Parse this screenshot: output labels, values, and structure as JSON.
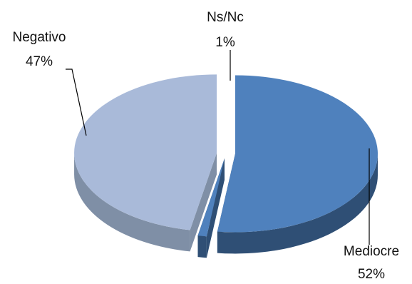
{
  "chart_data": {
    "type": "pie",
    "style": "3d-exploded",
    "slices": [
      {
        "name": "Mediocre",
        "value": 52,
        "label": "52%",
        "color": "#4F81BD",
        "side_color": "#2F4F75"
      },
      {
        "name": "Ns/Nc",
        "value": 1,
        "label": "1%",
        "color": "#4F81BD",
        "side_color": "#2F4F75"
      },
      {
        "name": "Negativo",
        "value": 47,
        "label": "47%",
        "color": "#A9BAD9",
        "side_color": "#7F8FA6"
      }
    ],
    "title": "",
    "legend": "none"
  }
}
